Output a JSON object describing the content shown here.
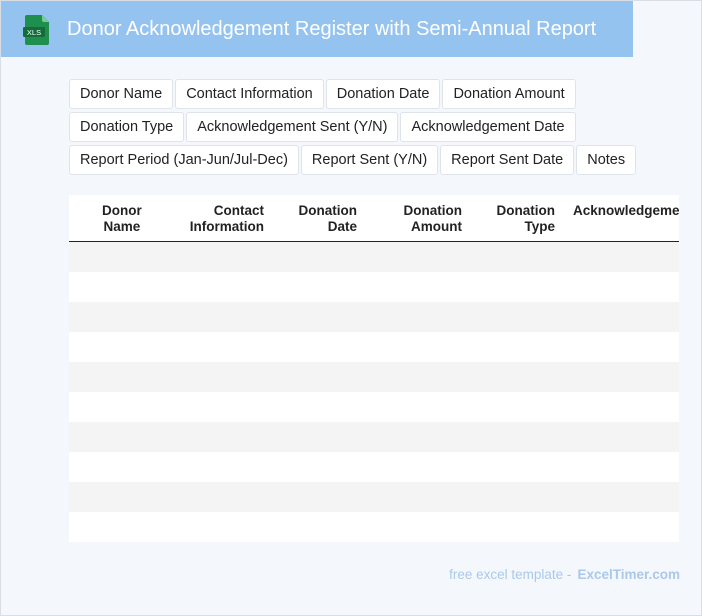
{
  "header": {
    "title": "Donor Acknowledgement Register with Semi-Annual Report",
    "icon": "xls-file-icon",
    "icon_label": "XLS",
    "background": "#95c3ef"
  },
  "fields": [
    "Donor Name",
    "Contact Information",
    "Donation Date",
    "Donation Amount",
    "Donation Type",
    "Acknowledgement Sent (Y/N)",
    "Acknowledgement Date",
    "Report Period (Jan-Jun/Jul-Dec)",
    "Report Sent (Y/N)",
    "Report Sent Date",
    "Notes"
  ],
  "table": {
    "columns": [
      {
        "line1": "Donor",
        "line2": "Name"
      },
      {
        "line1": "Contact",
        "line2": "Information"
      },
      {
        "line1": "Donation",
        "line2": "Date"
      },
      {
        "line1": "Donation",
        "line2": "Amount"
      },
      {
        "line1": "Donation",
        "line2": "Type"
      },
      {
        "line1": "Acknowledgement",
        "line2": ""
      }
    ],
    "row_count": 10
  },
  "footer": {
    "text": "free excel template -",
    "brand": "ExcelTimer.com"
  }
}
